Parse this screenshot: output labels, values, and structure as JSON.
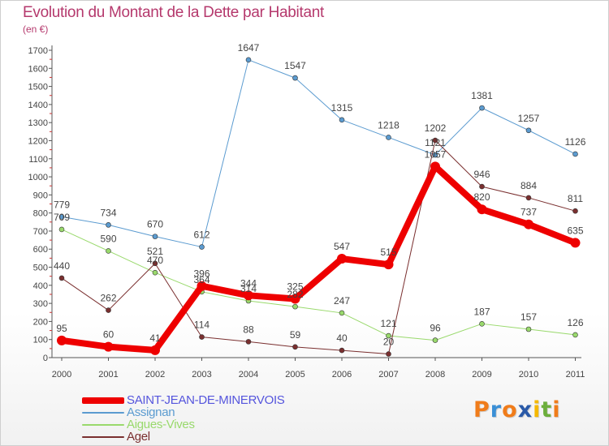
{
  "title": "Evolution du Montant de la Dette par Habitant",
  "subtitle": "(en €)",
  "logo": {
    "text": "Proxiti",
    "letters": [
      "P",
      "r",
      "o",
      "x",
      "i",
      "t",
      "i"
    ],
    "colors": [
      "#f07c1a",
      "#3a8fd6",
      "#f07c1a",
      "#2a5aa8",
      "#f5b800",
      "#6cae3c",
      "#f07c1a"
    ]
  },
  "chart_data": {
    "type": "line",
    "title": "Evolution du Montant de la Dette par Habitant",
    "subtitle": "(en €)",
    "xlabel": "",
    "ylabel": "",
    "x": [
      "2000",
      "2001",
      "2002",
      "2003",
      "2004",
      "2005",
      "2006",
      "2007",
      "2008",
      "2009",
      "2010",
      "2011"
    ],
    "ylim": [
      0,
      1700
    ],
    "yticks": [
      0,
      100,
      200,
      300,
      400,
      500,
      600,
      700,
      800,
      900,
      1000,
      1100,
      1200,
      1300,
      1400,
      1500,
      1600,
      1700
    ],
    "grid": false,
    "legend_position": "bottom-left",
    "series": [
      {
        "name": "Assignan",
        "color": "#5b9bd0",
        "width": 1,
        "values": [
          779,
          734,
          670,
          612,
          1647,
          1547,
          1315,
          1218,
          1121,
          1381,
          1257,
          1126
        ]
      },
      {
        "name": "Aigues-Vives",
        "color": "#99d96c",
        "width": 1,
        "values": [
          709,
          590,
          470,
          364,
          314,
          282,
          247,
          121,
          96,
          187,
          157,
          126
        ]
      },
      {
        "name": "Agel",
        "color": "#7a2f2f",
        "width": 1,
        "values": [
          440,
          262,
          521,
          114,
          88,
          59,
          40,
          20,
          1202,
          946,
          884,
          811
        ]
      },
      {
        "name": "SAINT-JEAN-DE-MINERVOIS",
        "color": "#ee0000",
        "width": 8,
        "values": [
          95,
          60,
          41,
          396,
          344,
          325,
          547,
          515,
          1057,
          820,
          737,
          635
        ]
      }
    ],
    "legend_order": [
      "SAINT-JEAN-DE-MINERVOIS",
      "Assignan",
      "Aigues-Vives",
      "Agel"
    ]
  }
}
